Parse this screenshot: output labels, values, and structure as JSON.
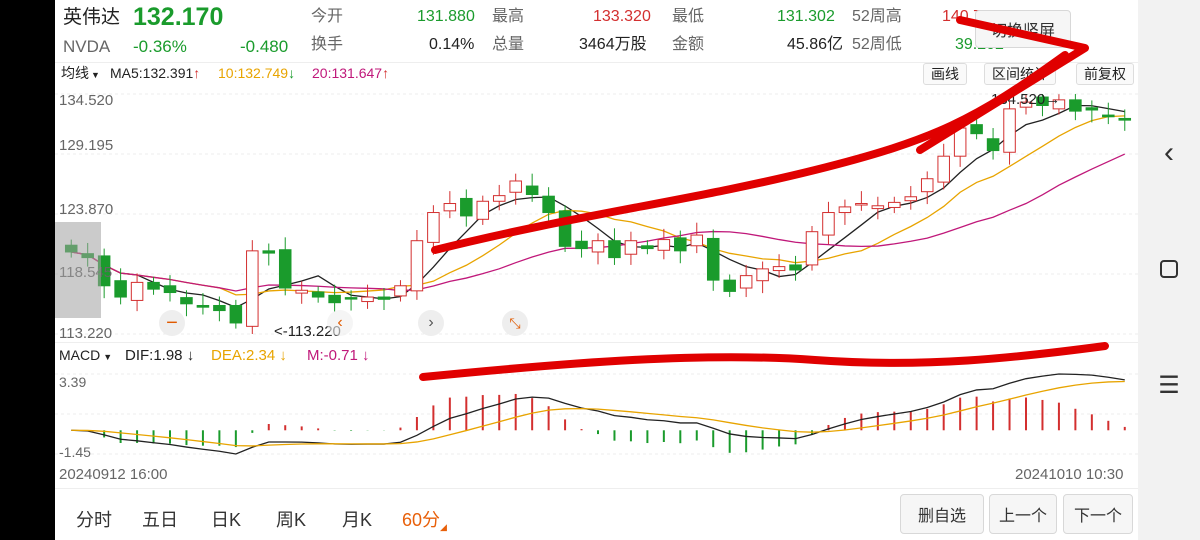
{
  "stock": {
    "name": "英伟达",
    "ticker": "NVDA",
    "price": "132.170",
    "change_pct": "-0.36%",
    "change": "-0.480"
  },
  "quote": {
    "open_label": "今开",
    "open": "131.880",
    "high_label": "最高",
    "high": "133.320",
    "low_label": "最低",
    "low": "131.302",
    "w52high_label": "52周高",
    "w52high": "140.750",
    "turnover_label": "换手",
    "turnover": "0.14%",
    "volume_label": "总量",
    "volume": "3464万股",
    "amount_label": "金额",
    "amount": "45.86亿",
    "w52low_label": "52周低",
    "w52low": "39.202"
  },
  "toolbar": {
    "switch_label": "切换竖屏",
    "ma_select": "均线",
    "ma5": "MA5:132.391",
    "ma10": "10:132.749",
    "ma20": "20:131.647",
    "draw_label": "画线",
    "stats_label": "区间统计",
    "adjust_label": "前复权"
  },
  "price_axis": {
    "top": "134.520",
    "mid1": "129.195",
    "mid2": "123.870",
    "mid3": "118.545",
    "bottom": "113.220",
    "high_marker": "134.520",
    "low_marker": "113.220"
  },
  "macd": {
    "select": "MACD",
    "dif": "DIF:1.98",
    "dea": "DEA:2.34",
    "m": "M:-0.71",
    "top": "3.39",
    "bottom": "-1.45"
  },
  "dates": {
    "start": "20240912 16:00",
    "end": "20241010 10:30"
  },
  "tabs": [
    "分时",
    "五日",
    "日K",
    "周K",
    "月K",
    "60分"
  ],
  "active_tab": "60分",
  "actions": {
    "remove_label": "删自选",
    "prev_label": "上一个",
    "next_label": "下一个"
  },
  "colors": {
    "up": "#d32f2f",
    "down": "#1a9b2c",
    "ma5": "#222222",
    "ma10": "#e8a400",
    "ma20": "#c0187a",
    "active_tab": "#e8600a",
    "annotation": "#e00000"
  },
  "chart_data": {
    "type": "candlestick",
    "ylim": [
      113.22,
      134.52
    ],
    "candles_approx_close": [
      120.5,
      120.0,
      117.5,
      116.5,
      117.8,
      117.2,
      116.9,
      115.9,
      115.6,
      115.3,
      114.2,
      120.6,
      120.4,
      117.3,
      117.1,
      116.5,
      116.0,
      116.4,
      116.5,
      116.3,
      117.5,
      121.5,
      124.0,
      124.8,
      123.7,
      125.0,
      125.5,
      126.8,
      125.6,
      124.0,
      121.0,
      120.8,
      121.5,
      120.0,
      121.5,
      120.8,
      121.6,
      120.6,
      122.0,
      118.0,
      117.0,
      118.4,
      119.0,
      119.2,
      118.9,
      122.3,
      124.0,
      124.5,
      124.8,
      124.6,
      124.9,
      125.4,
      127.0,
      129.0,
      131.5,
      131.0,
      129.5,
      133.2,
      133.8,
      133.5,
      134.0,
      133.0,
      133.1,
      132.5,
      132.2
    ]
  }
}
